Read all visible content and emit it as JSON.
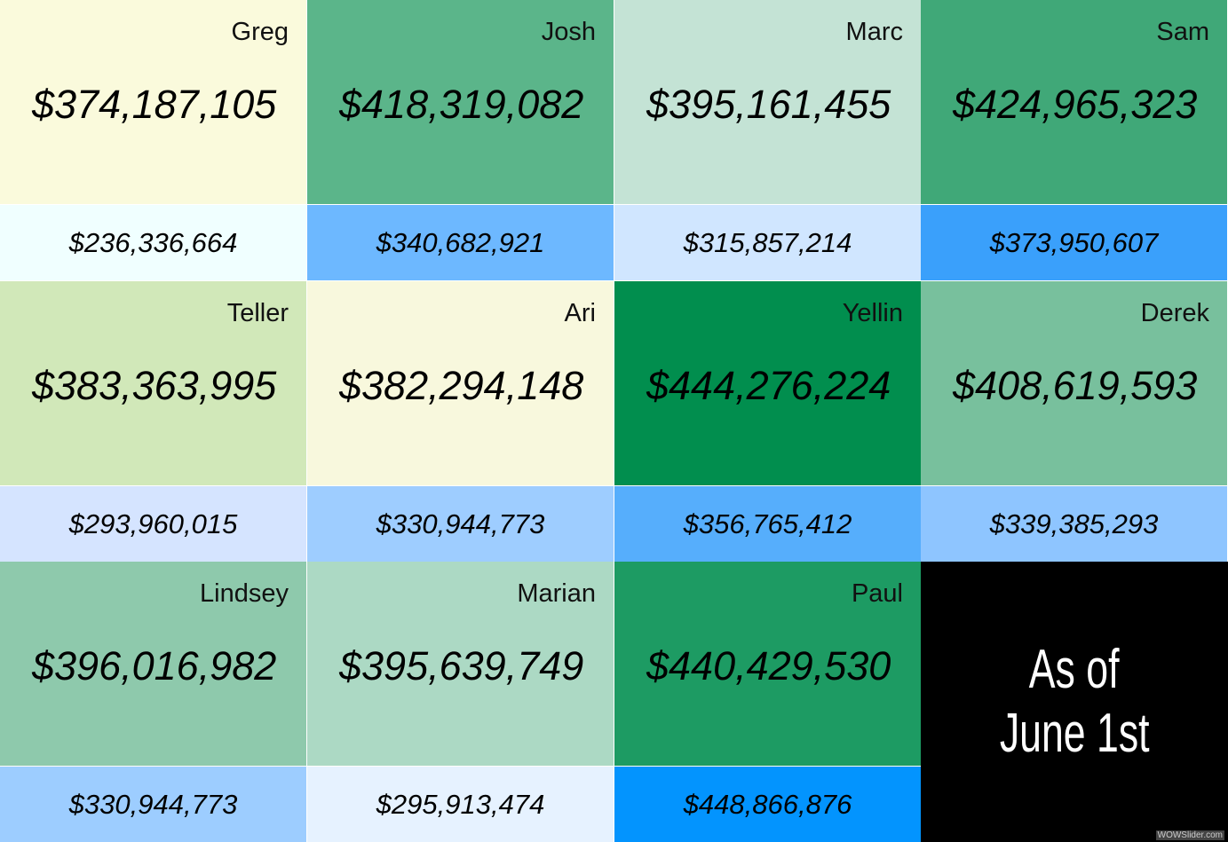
{
  "cells": [
    {
      "name": "Greg",
      "value": "$374,187,105",
      "secondary": "$236,336,664",
      "color": "#fafadc",
      "secondary_color": "#f0ffff"
    },
    {
      "name": "Josh",
      "value": "$418,319,082",
      "secondary": "$340,682,921",
      "color": "#5bb58a",
      "secondary_color": "#6db8ff"
    },
    {
      "name": "Marc",
      "value": "$395,161,455",
      "secondary": "$315,857,214",
      "color": "#c4e3d5",
      "secondary_color": "#d0e6ff"
    },
    {
      "name": "Sam",
      "value": "$424,965,323",
      "secondary": "$373,950,607",
      "color": "#40a878",
      "secondary_color": "#3aa0fb"
    },
    {
      "name": "Teller",
      "value": "$383,363,995",
      "secondary": "$293,960,015",
      "color": "#d1e8b9",
      "secondary_color": "#d5e4ff"
    },
    {
      "name": "Ari",
      "value": "$382,294,148",
      "secondary": "$330,944,773",
      "color": "#f8f8dd",
      "secondary_color": "#9ecdff"
    },
    {
      "name": "Yellin",
      "value": "$444,276,224",
      "secondary": "$356,765,412",
      "color": "#018e4e",
      "secondary_color": "#56aefc"
    },
    {
      "name": "Derek",
      "value": "$408,619,593",
      "secondary": "$339,385,293",
      "color": "#78c09d",
      "secondary_color": "#8ec5ff"
    },
    {
      "name": "Lindsey",
      "value": "$396,016,982",
      "secondary": "$330,944,773",
      "color": "#8ec9ac",
      "secondary_color": "#9dcdff"
    },
    {
      "name": "Marian",
      "value": "$395,639,749",
      "secondary": "$295,913,474",
      "color": "#acd9c4",
      "secondary_color": "#e6f2ff"
    },
    {
      "name": "Paul",
      "value": "$440,429,530",
      "secondary": "$448,866,876",
      "color": "#1d9b63",
      "secondary_color": "#0394fe"
    }
  ],
  "note_lines": [
    "As of",
    "June 1st"
  ],
  "watermark": "WOWSlider.com"
}
